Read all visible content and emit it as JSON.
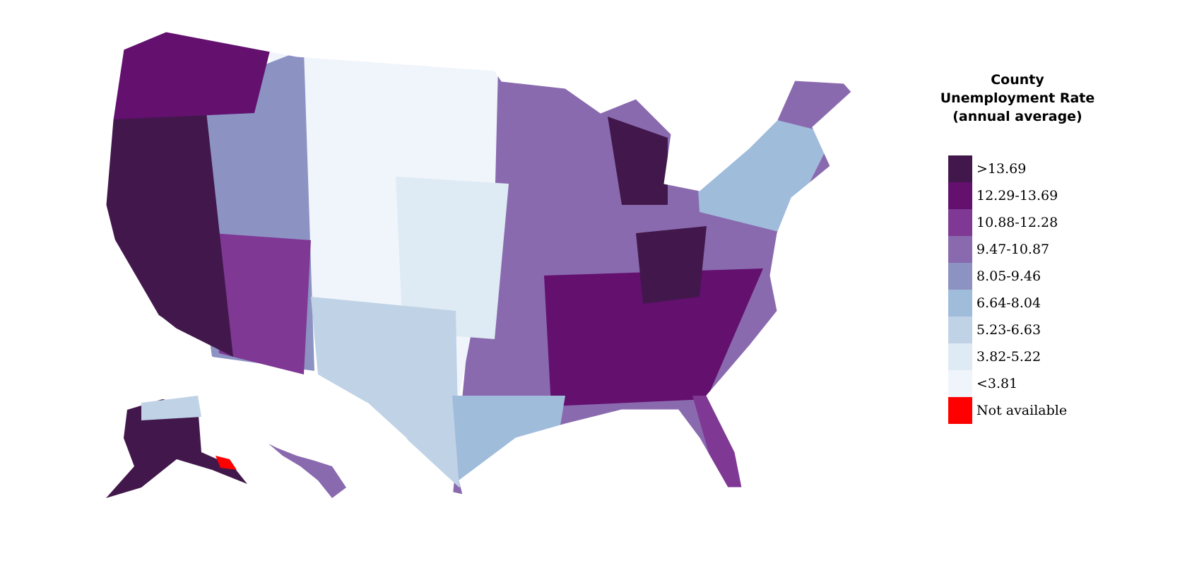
{
  "legend": {
    "title_lines": [
      "County",
      "Unemployment Rate",
      "(annual average)"
    ],
    "bins": [
      {
        "label": ">13.69",
        "color": "#42184c"
      },
      {
        "label": "12.29-13.69",
        "color": "#63106f"
      },
      {
        "label": "10.88-12.28",
        "color": "#7f3894"
      },
      {
        "label": "9.47-10.87",
        "color": "#8a6aae"
      },
      {
        "label": "8.05-9.46",
        "color": "#8c93c3"
      },
      {
        "label": "6.64-8.04",
        "color": "#a0bcdb"
      },
      {
        "label": "5.23-6.63",
        "color": "#c0d2e6"
      },
      {
        "label": "3.82-5.22",
        "color": "#deeaf4"
      },
      {
        "label": "<3.81",
        "color": "#f0f5fb"
      },
      {
        "label": "Not available",
        "color": "#ff0000"
      }
    ]
  },
  "chart_data": {
    "type": "choropleth",
    "geography": "US counties",
    "metric": "County Unemployment Rate (annual average)",
    "legend_placement": "right"
  }
}
